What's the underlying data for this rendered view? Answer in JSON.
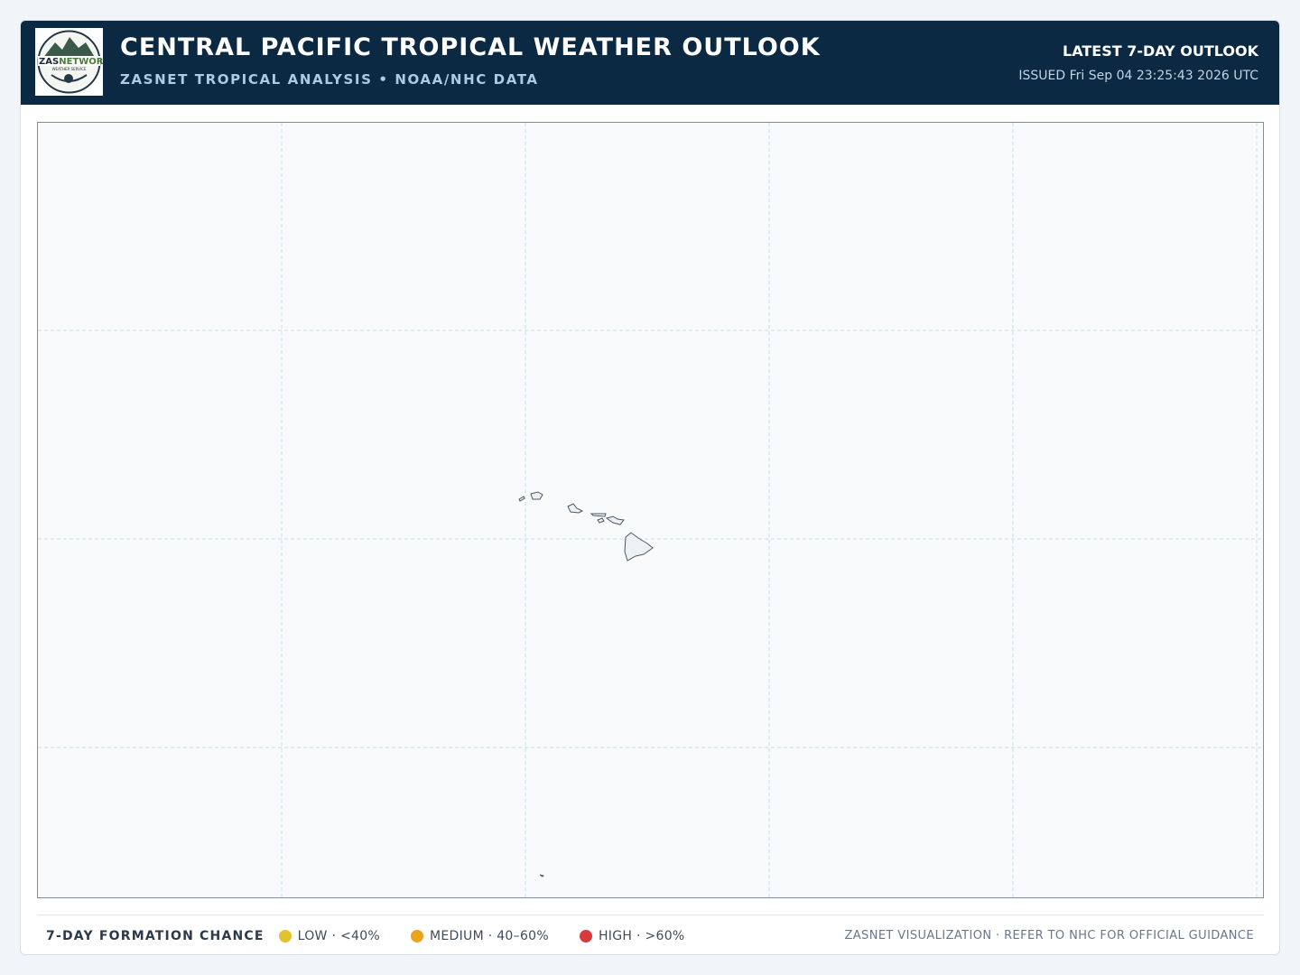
{
  "header": {
    "title": "CENTRAL PACIFIC TROPICAL WEATHER OUTLOOK",
    "subtitle": "ZASNET TROPICAL ANALYSIS • NOAA/NHC DATA",
    "right_title": "LATEST 7-DAY OUTLOOK",
    "issued": "ISSUED Fri Sep 04 23:25:43 2026 UTC",
    "logo": {
      "brand_a": "ZAS",
      "brand_b": "NETWORK",
      "tagline": "WEATHER SERVICE"
    }
  },
  "legend": {
    "title": "7-DAY FORMATION CHANCE",
    "items": [
      {
        "label": "LOW · <40%",
        "color": "#e2c22f"
      },
      {
        "label": "MEDIUM · 40–60%",
        "color": "#eaa51e"
      },
      {
        "label": "HIGH · >60%",
        "color": "#d63a3a"
      }
    ]
  },
  "footer": {
    "note": "ZASNET VISUALIZATION · REFER TO NHC FOR OFFICIAL GUIDANCE"
  }
}
